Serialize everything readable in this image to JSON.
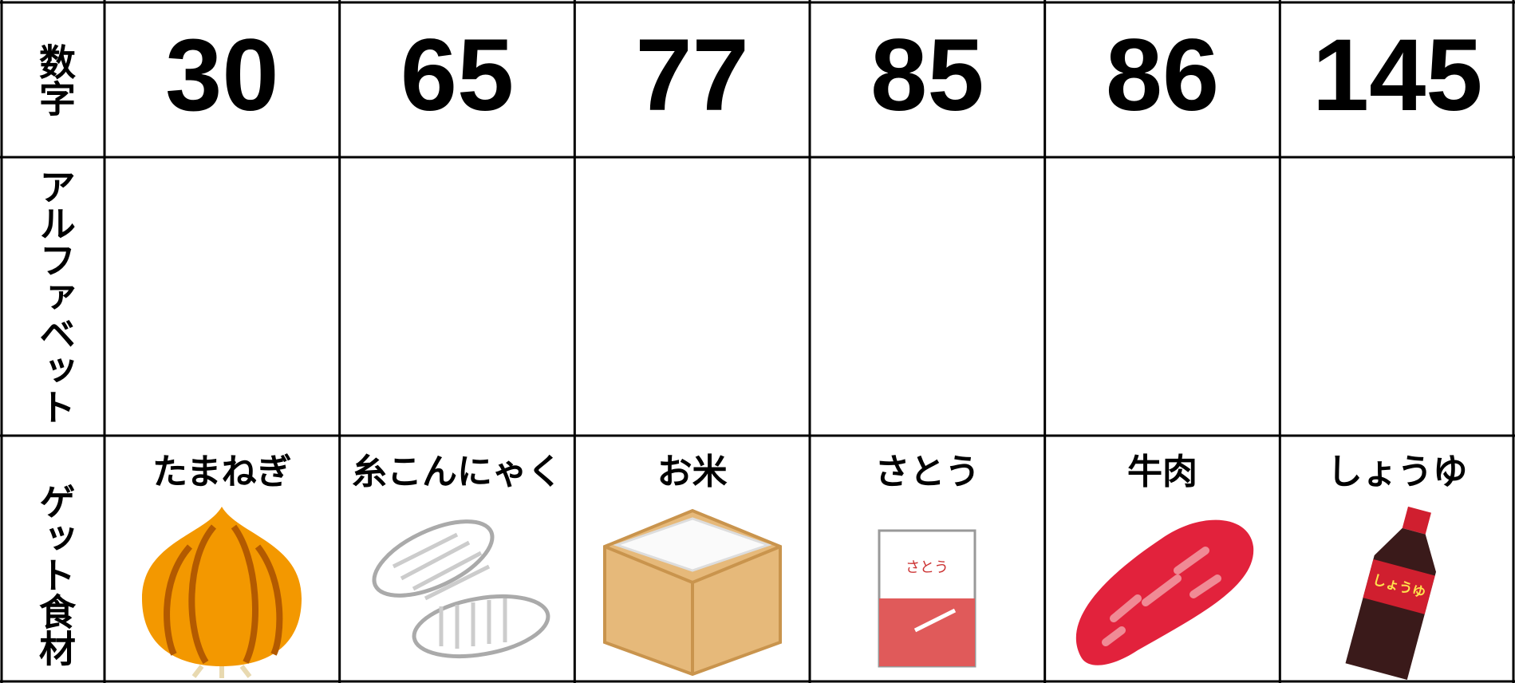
{
  "table": {
    "row_headers": [
      "数字",
      "アルファベット",
      "ゲット食材"
    ],
    "numbers": [
      30,
      65,
      77,
      85,
      86,
      145
    ],
    "foods": [
      "たまねぎ",
      "糸こんにゃく",
      "お米",
      "さとう",
      "牛肉",
      "しょうゆ"
    ]
  }
}
